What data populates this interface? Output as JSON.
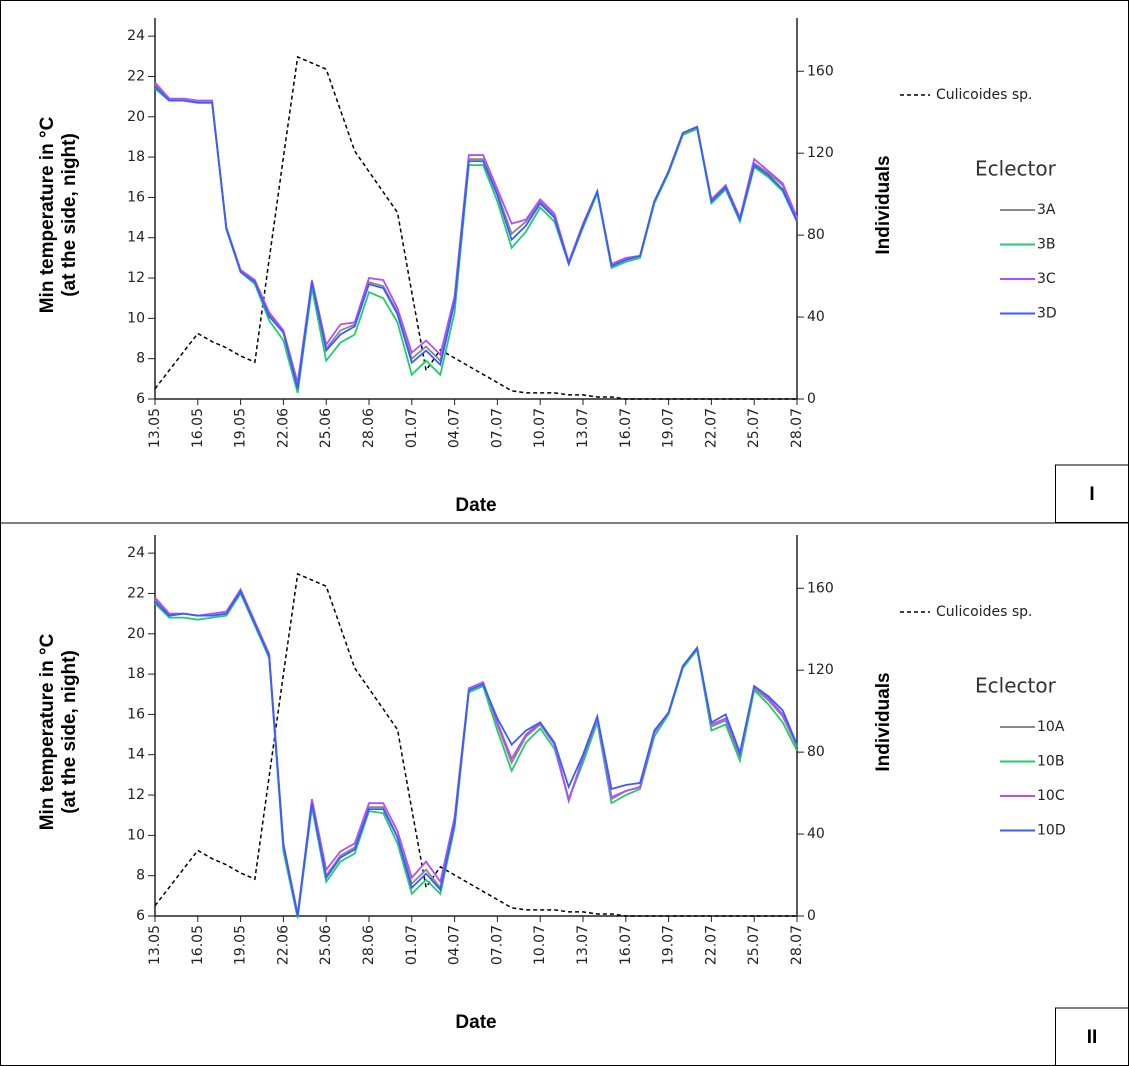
{
  "chart_data": [
    {
      "type": "line",
      "panel_label": "I",
      "x_label": "Date",
      "y_label": [
        "Min temperature in °C",
        "(at the side, night)"
      ],
      "y2_label": "Individuals",
      "legend_title": "Eclector",
      "categories": [
        "13.05",
        null,
        null,
        "16.05",
        null,
        null,
        "19.05",
        null,
        null,
        "22.06",
        null,
        null,
        "25.06",
        null,
        null,
        "28.06",
        null,
        null,
        "01.07",
        null,
        null,
        "04.07",
        null,
        null,
        "07.07",
        null,
        null,
        "10.07",
        null,
        null,
        "13.07",
        null,
        null,
        "16.07",
        null,
        null,
        "19.07",
        null,
        null,
        "22.07",
        null,
        null,
        "25.07",
        null,
        null,
        "28.07"
      ],
      "ylim": [
        6,
        24.9
      ],
      "yticks": [
        6,
        8,
        10,
        12,
        14,
        16,
        18,
        20,
        22,
        24
      ],
      "y2lim": [
        0,
        186
      ],
      "y2ticks": [
        0,
        40,
        80,
        120,
        160
      ],
      "series": [
        {
          "name": "Culicoides sp.",
          "color": "#000000",
          "linestyle": "dashed",
          "axis": "y2",
          "values": [
            5,
            14,
            23,
            32,
            28,
            25,
            21,
            18,
            68,
            118,
            167,
            164,
            161,
            141,
            121,
            111,
            101,
            91,
            52,
            14,
            24,
            20,
            16,
            12,
            8,
            4,
            3,
            3,
            3,
            2,
            2,
            1,
            1,
            0,
            0,
            0,
            0,
            0,
            0,
            0,
            0,
            0,
            0,
            0,
            0,
            0
          ]
        },
        {
          "name": "3A",
          "color": "#888888",
          "values": [
            21.6,
            20.8,
            20.8,
            20.7,
            20.7,
            14.5,
            12.4,
            11.8,
            10.2,
            9.3,
            6.6,
            11.8,
            8.5,
            9.4,
            9.7,
            11.8,
            11.6,
            10.3,
            8.0,
            8.6,
            7.9,
            10.9,
            17.9,
            17.9,
            16.2,
            14.2,
            14.8,
            15.8,
            15.1,
            12.7,
            14.6,
            16.3,
            12.6,
            12.9,
            13.1,
            15.8,
            17.3,
            19.2,
            19.5,
            15.8,
            16.6,
            14.9,
            17.7,
            17.2,
            16.6,
            14.9
          ]
        },
        {
          "name": "3B",
          "color": "#22cc66",
          "values": [
            21.4,
            20.8,
            20.9,
            20.8,
            20.8,
            14.4,
            12.3,
            11.7,
            9.9,
            8.9,
            6.3,
            11.5,
            7.9,
            8.8,
            9.2,
            11.3,
            11.0,
            9.8,
            7.2,
            7.9,
            7.2,
            10.3,
            17.6,
            17.6,
            15.8,
            13.5,
            14.3,
            15.5,
            14.8,
            12.7,
            14.5,
            16.2,
            12.5,
            12.8,
            13.0,
            15.7,
            17.2,
            19.1,
            19.4,
            15.7,
            16.4,
            14.8,
            17.5,
            17.0,
            16.3,
            14.8
          ]
        },
        {
          "name": "3C",
          "color": "#b44cff",
          "values": [
            21.7,
            20.9,
            20.9,
            20.8,
            20.8,
            14.5,
            12.4,
            11.9,
            10.3,
            9.4,
            6.8,
            11.9,
            8.7,
            9.7,
            9.8,
            12.0,
            11.9,
            10.5,
            8.3,
            8.9,
            8.2,
            11.1,
            18.1,
            18.1,
            16.4,
            14.7,
            14.9,
            15.9,
            15.2,
            12.8,
            14.7,
            16.3,
            12.7,
            13.0,
            13.1,
            15.8,
            17.3,
            19.2,
            19.5,
            15.9,
            16.6,
            15.0,
            17.9,
            17.3,
            16.7,
            15.0
          ]
        },
        {
          "name": "3D",
          "color": "#3a5cff",
          "values": [
            21.5,
            20.8,
            20.8,
            20.7,
            20.7,
            14.5,
            12.3,
            11.8,
            10.1,
            9.3,
            6.5,
            11.8,
            8.4,
            9.2,
            9.6,
            11.7,
            11.5,
            10.2,
            7.8,
            8.4,
            7.7,
            10.8,
            17.8,
            17.8,
            16.1,
            13.9,
            14.6,
            15.7,
            15.0,
            12.7,
            14.6,
            16.3,
            12.6,
            12.9,
            13.1,
            15.8,
            17.3,
            19.2,
            19.5,
            15.8,
            16.5,
            14.9,
            17.6,
            17.1,
            16.4,
            14.8
          ]
        }
      ]
    },
    {
      "type": "line",
      "panel_label": "II",
      "x_label": "Date",
      "y_label": [
        "Min temperature in °C",
        "(at the side, night)"
      ],
      "y2_label": "Individuals",
      "legend_title": "Eclector",
      "categories": [
        "13.05",
        null,
        null,
        "16.05",
        null,
        null,
        "19.05",
        null,
        null,
        "22.06",
        null,
        null,
        "25.06",
        null,
        null,
        "28.06",
        null,
        null,
        "01.07",
        null,
        null,
        "04.07",
        null,
        null,
        "07.07",
        null,
        null,
        "10.07",
        null,
        null,
        "13.07",
        null,
        null,
        "16.07",
        null,
        null,
        "19.07",
        null,
        null,
        "22.07",
        null,
        null,
        "25.07",
        null,
        null,
        "28.07"
      ],
      "ylim": [
        6,
        24.9
      ],
      "yticks": [
        6,
        8,
        10,
        12,
        14,
        16,
        18,
        20,
        22,
        24
      ],
      "y2lim": [
        0,
        186
      ],
      "y2ticks": [
        0,
        40,
        80,
        120,
        160
      ],
      "series": [
        {
          "name": "Culicoides sp.",
          "color": "#000000",
          "linestyle": "dashed",
          "axis": "y2",
          "values": [
            5,
            14,
            23,
            32,
            28,
            25,
            21,
            18,
            68,
            118,
            167,
            164,
            161,
            141,
            121,
            111,
            101,
            91,
            52,
            14,
            24,
            20,
            16,
            12,
            8,
            4,
            3,
            3,
            3,
            2,
            2,
            1,
            1,
            0,
            0,
            0,
            0,
            0,
            0,
            0,
            0,
            0,
            0,
            0,
            0,
            0
          ]
        },
        {
          "name": "10A",
          "color": "#888888",
          "values": [
            21.7,
            20.9,
            21.0,
            20.9,
            20.9,
            21.0,
            22.1,
            20.5,
            18.9,
            9.5,
            6.0,
            11.6,
            8.0,
            9.0,
            9.4,
            11.4,
            11.4,
            9.9,
            7.6,
            8.3,
            7.4,
            10.7,
            17.2,
            17.5,
            15.5,
            13.6,
            14.9,
            15.5,
            14.5,
            11.8,
            13.8,
            15.8,
            11.8,
            12.2,
            12.4,
            15.1,
            16.1,
            18.4,
            19.3,
            15.4,
            15.7,
            13.9,
            17.3,
            16.7,
            15.9,
            14.4
          ]
        },
        {
          "name": "10B",
          "color": "#22cc66",
          "values": [
            21.5,
            20.8,
            20.8,
            20.7,
            20.8,
            20.9,
            22.0,
            20.4,
            18.8,
            9.2,
            5.9,
            11.4,
            7.7,
            8.7,
            9.1,
            11.2,
            11.1,
            9.6,
            7.1,
            7.8,
            7.1,
            10.4,
            17.1,
            17.4,
            15.2,
            13.2,
            14.6,
            15.3,
            14.3,
            11.8,
            13.6,
            15.6,
            11.6,
            12.0,
            12.3,
            14.9,
            16.0,
            18.3,
            19.2,
            15.2,
            15.5,
            13.7,
            17.2,
            16.5,
            15.6,
            14.2
          ]
        },
        {
          "name": "10C",
          "color": "#b44cff",
          "values": [
            21.8,
            21.0,
            21.0,
            20.9,
            21.0,
            21.1,
            22.2,
            20.6,
            19.0,
            9.6,
            6.1,
            11.8,
            8.3,
            9.2,
            9.6,
            11.6,
            11.6,
            10.2,
            7.9,
            8.7,
            7.7,
            10.9,
            17.3,
            17.6,
            15.6,
            13.8,
            15.0,
            15.6,
            14.5,
            11.7,
            13.9,
            15.8,
            11.9,
            12.2,
            12.4,
            15.1,
            16.1,
            18.4,
            19.3,
            15.5,
            15.8,
            14.0,
            17.4,
            16.8,
            16.0,
            14.5
          ]
        },
        {
          "name": "10D",
          "color": "#3a5cff",
          "values": [
            21.6,
            20.9,
            21.0,
            20.9,
            20.9,
            21.0,
            22.1,
            20.5,
            18.9,
            9.5,
            6.0,
            11.6,
            7.9,
            8.9,
            9.3,
            11.3,
            11.3,
            9.9,
            7.4,
            8.1,
            7.3,
            10.6,
            17.2,
            17.5,
            15.8,
            14.5,
            15.2,
            15.6,
            14.6,
            12.4,
            14.0,
            15.9,
            12.3,
            12.5,
            12.6,
            15.2,
            16.1,
            18.4,
            19.3,
            15.6,
            16.0,
            14.1,
            17.4,
            16.9,
            16.2,
            14.5
          ]
        }
      ]
    }
  ]
}
